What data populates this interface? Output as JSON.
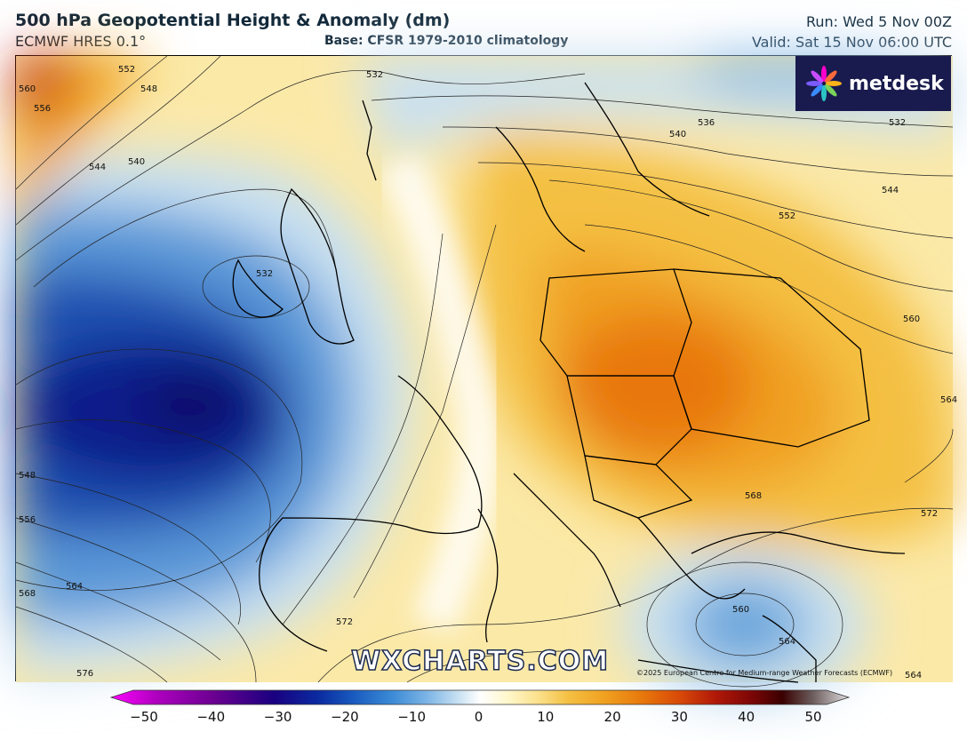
{
  "header": {
    "title": "500 hPa Geopotential Height & Anomaly (dm)",
    "model": "ECMWF HRES 0.1°",
    "base": "Base: CFSR 1979-2010 climatology",
    "run": "Run: Wed 5 Nov 00Z",
    "valid": "Valid: Sat 15 Nov 06:00 UTC"
  },
  "logo": {
    "text": "metdesk",
    "icon": "flower-logo-icon"
  },
  "watermark": "WXCHARTS.COM",
  "copyright": "©2025 European Centre for Medium-range Weather Forecasts (ECMWF)",
  "colorbar": {
    "ticks": [
      "−50",
      "−40",
      "−30",
      "−20",
      "−10",
      "0",
      "10",
      "20",
      "30",
      "40",
      "50"
    ],
    "colors": [
      "#ff00ff",
      "#b000c0",
      "#6a0090",
      "#1a0080",
      "#0a2aa0",
      "#1a5cc0",
      "#3a8ad6",
      "#7fb6e6",
      "#c7e0f2",
      "#ffffff",
      "#fff6c8",
      "#fbe08a",
      "#f4c042",
      "#f0a020",
      "#e8780c",
      "#d84a08",
      "#b01808",
      "#7a0606",
      "#3a0000",
      "#6a5a5a",
      "#b0a8a8",
      "#e0dcdc"
    ]
  },
  "map": {
    "contour_labels": [
      "560",
      "556",
      "552",
      "548",
      "544",
      "540",
      "532",
      "532",
      "536",
      "540",
      "532",
      "544",
      "552",
      "560",
      "564",
      "548",
      "556",
      "568",
      "564",
      "572",
      "576",
      "568",
      "572",
      "560",
      "564",
      "564"
    ]
  }
}
